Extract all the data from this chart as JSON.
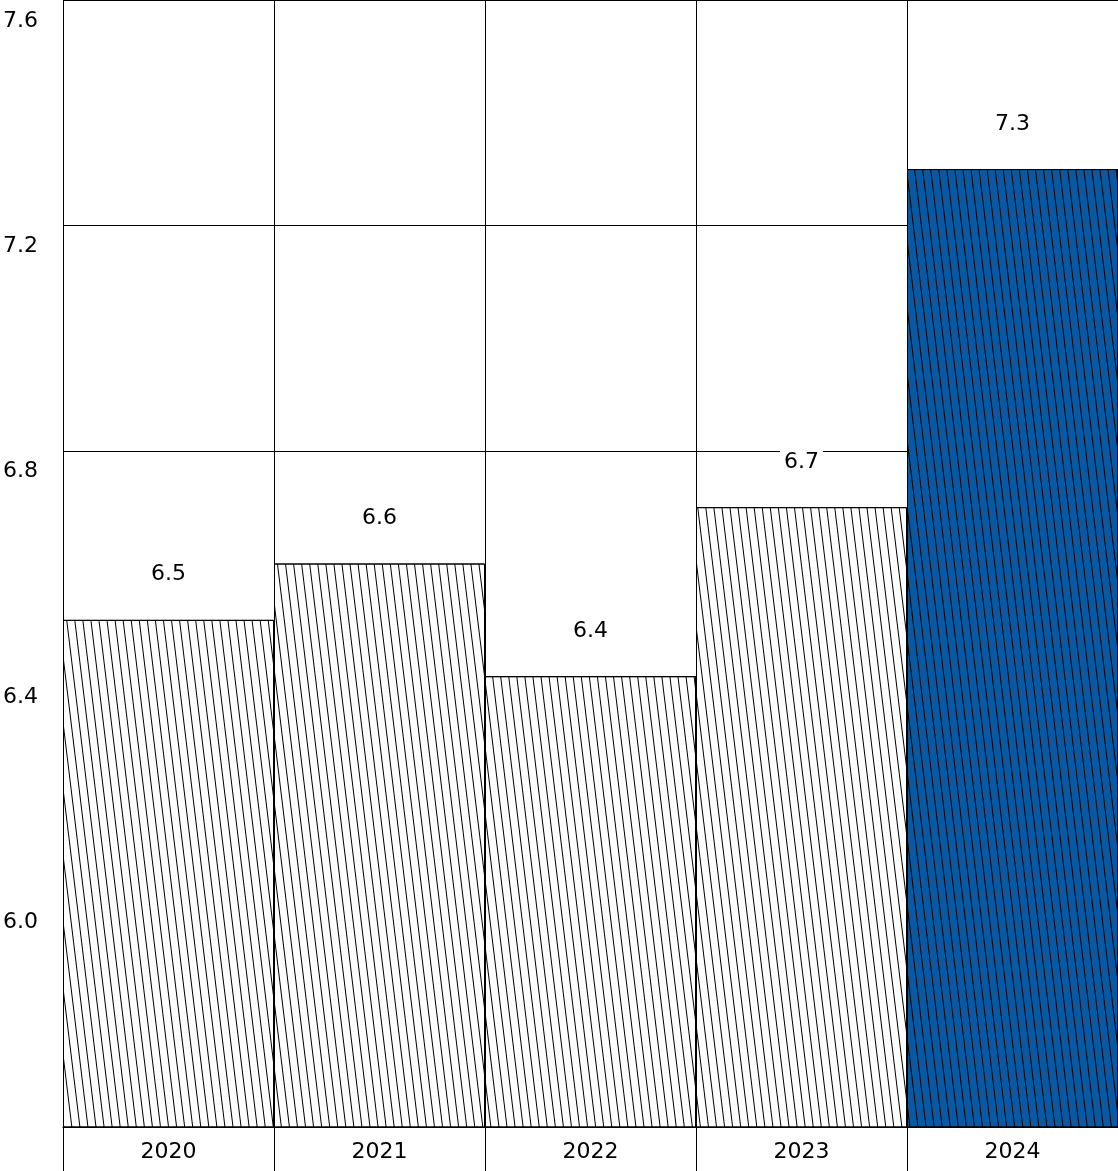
{
  "chart_data": {
    "type": "bar",
    "categories": [
      "2020",
      "2021",
      "2022",
      "2023",
      "2024"
    ],
    "values": [
      6.5,
      6.6,
      6.4,
      6.7,
      7.3
    ],
    "colors": [
      "#ffffff",
      "#ffffff",
      "#ffffff",
      "#ffffff",
      "#0b58a2"
    ],
    "ylim": [
      5.6,
      7.6
    ],
    "yticks": [
      {
        "value": 6,
        "label": "6.0"
      },
      6.4,
      6.8,
      7.2,
      7.6
    ],
    "grid": true,
    "data_labels": true
  }
}
